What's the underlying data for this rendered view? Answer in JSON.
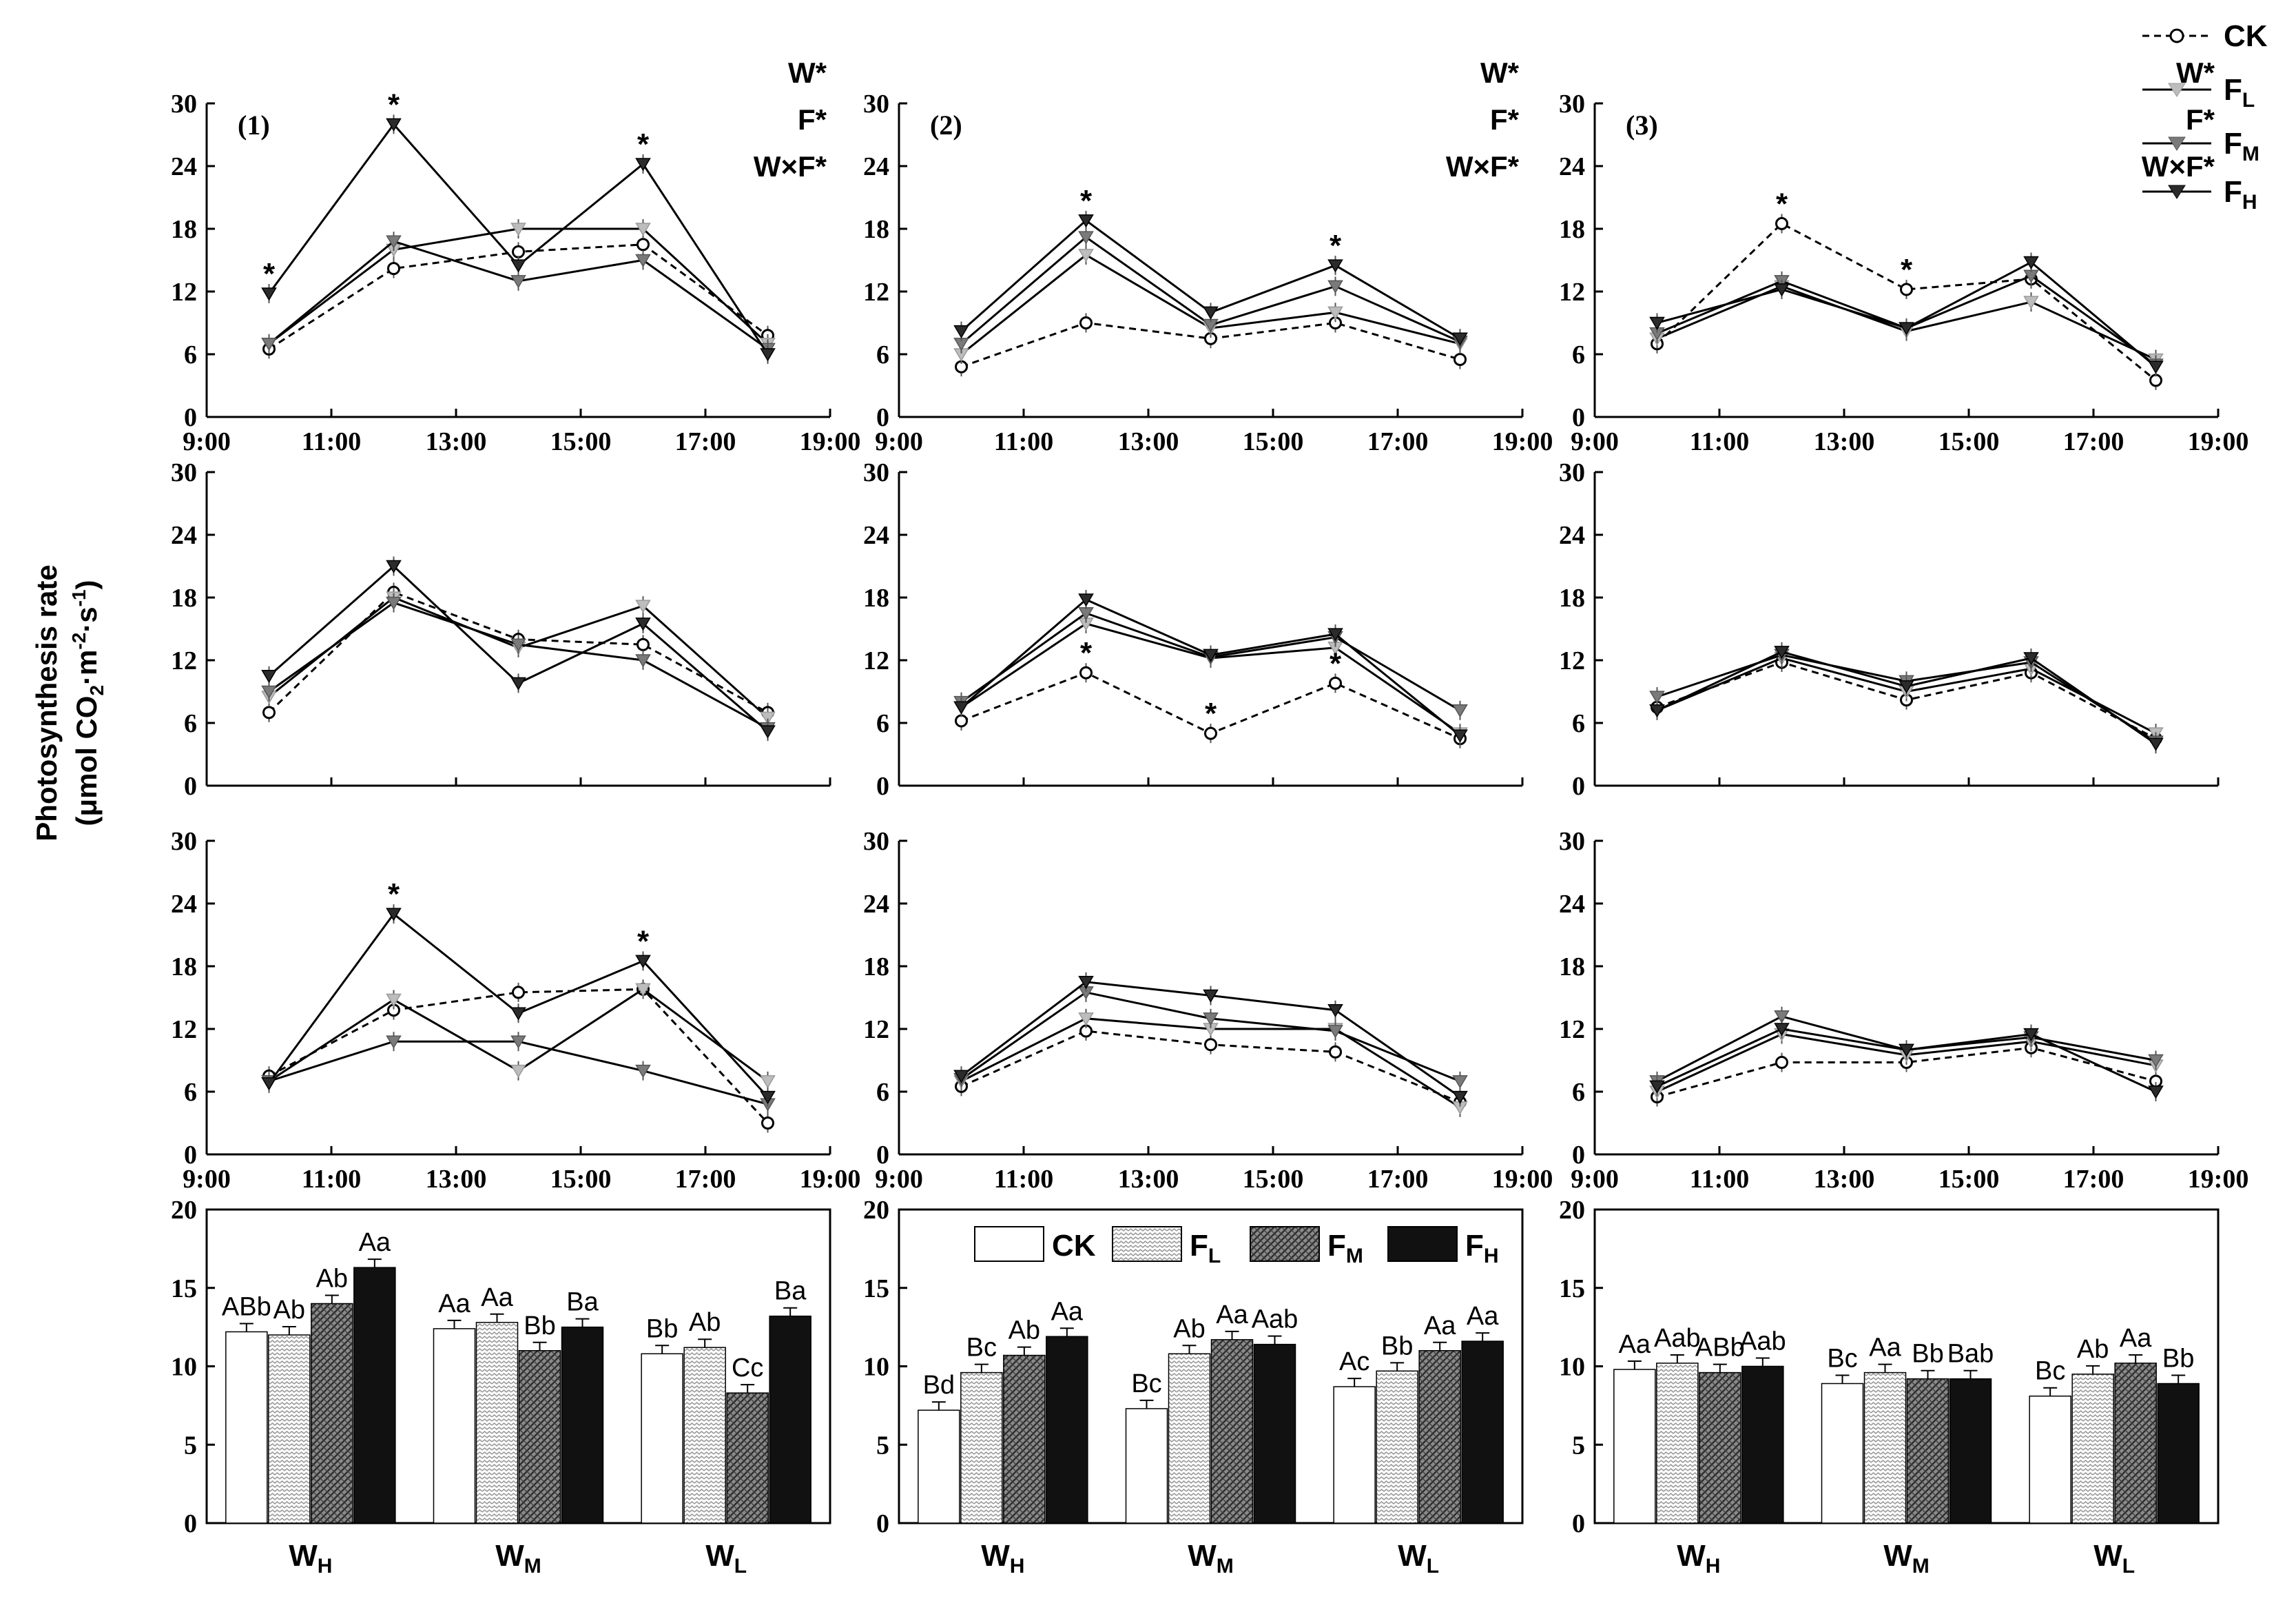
{
  "figure": {
    "ylabel_line1": "Photosynthesis rate",
    "ylabel_line2_prefix": "(μmol CO",
    "ylabel_line2_suffix": "·m",
    "ylabel_line2_end": "·s",
    "ylabel_close": ")",
    "ylabel_sub2": "2",
    "ylabel_sup_m": "-2",
    "ylabel_sup_s": "-1"
  },
  "legend": {
    "entries": [
      {
        "key": "CK",
        "label": "CK",
        "sub": ""
      },
      {
        "key": "FL",
        "label": "F",
        "sub": "L"
      },
      {
        "key": "FM",
        "label": "F",
        "sub": "M"
      },
      {
        "key": "FH",
        "label": "F",
        "sub": "H"
      }
    ],
    "colors": {
      "CK": "#ffffff",
      "FL": "#bdbdbd",
      "FM": "#7a7a7a",
      "FH": "#2b2b2b"
    }
  },
  "anova_labels": [
    "W*",
    "F*",
    "W×F*"
  ],
  "chart_data": [
    {
      "type": "line",
      "panel": "(1)",
      "row": 1,
      "col": 1,
      "title": "(1)",
      "anova": true,
      "x_ticks": [
        "9:00",
        "11:00",
        "13:00",
        "15:00",
        "17:00",
        "19:00"
      ],
      "y_ticks": [
        0,
        6,
        12,
        18,
        24,
        30
      ],
      "ylim": [
        0,
        30
      ],
      "xlim": [
        9,
        19
      ],
      "x": [
        10,
        12,
        14,
        16,
        18
      ],
      "series": [
        {
          "name": "CK",
          "values": [
            6.5,
            14.2,
            15.8,
            16.5,
            7.8
          ]
        },
        {
          "name": "FL",
          "values": [
            7.0,
            16.0,
            18.0,
            18.0,
            7.0
          ]
        },
        {
          "name": "FM",
          "values": [
            7.0,
            16.8,
            13.0,
            15.0,
            6.5
          ]
        },
        {
          "name": "FH",
          "values": [
            11.8,
            28.0,
            14.5,
            24.2,
            6.0
          ]
        }
      ],
      "annotations": [
        {
          "x": 10,
          "y": 11.8,
          "text": "*"
        },
        {
          "x": 12,
          "y": 28.0,
          "text": "*"
        },
        {
          "x": 16,
          "y": 24.2,
          "text": "*"
        }
      ]
    },
    {
      "type": "line",
      "panel": "(2)",
      "row": 1,
      "col": 2,
      "title": "(2)",
      "anova": true,
      "x_ticks": [
        "9:00",
        "11:00",
        "13:00",
        "15:00",
        "17:00",
        "19:00"
      ],
      "y_ticks": [
        0,
        6,
        12,
        18,
        24,
        30
      ],
      "ylim": [
        0,
        30
      ],
      "xlim": [
        9,
        19
      ],
      "x": [
        10,
        12,
        14,
        16,
        18
      ],
      "series": [
        {
          "name": "CK",
          "values": [
            4.8,
            9.0,
            7.5,
            9.0,
            5.5
          ]
        },
        {
          "name": "FL",
          "values": [
            6.0,
            15.5,
            8.5,
            10.0,
            7.0
          ]
        },
        {
          "name": "FM",
          "values": [
            7.0,
            17.2,
            8.8,
            12.5,
            7.2
          ]
        },
        {
          "name": "FH",
          "values": [
            8.2,
            18.8,
            10.0,
            14.5,
            7.5
          ]
        }
      ],
      "annotations": [
        {
          "x": 12,
          "y": 18.8,
          "text": "*"
        },
        {
          "x": 16,
          "y": 14.5,
          "text": "*"
        }
      ]
    },
    {
      "type": "line",
      "panel": "(3)",
      "row": 1,
      "col": 3,
      "title": "(3)",
      "anova": true,
      "x_ticks": [
        "9:00",
        "11:00",
        "13:00",
        "15:00",
        "17:00",
        "19:00"
      ],
      "y_ticks": [
        0,
        6,
        12,
        18,
        24,
        30
      ],
      "ylim": [
        0,
        30
      ],
      "xlim": [
        9,
        19
      ],
      "x": [
        10,
        12,
        14,
        16,
        18
      ],
      "series": [
        {
          "name": "CK",
          "values": [
            7.0,
            18.5,
            12.2,
            13.2,
            3.5
          ]
        },
        {
          "name": "FL",
          "values": [
            7.5,
            12.5,
            8.2,
            11.0,
            5.5
          ]
        },
        {
          "name": "FM",
          "values": [
            8.0,
            13.0,
            8.5,
            13.5,
            5.0
          ]
        },
        {
          "name": "FH",
          "values": [
            9.0,
            12.2,
            8.5,
            14.8,
            4.8
          ]
        }
      ],
      "annotations": [
        {
          "x": 12,
          "y": 18.5,
          "text": "*"
        },
        {
          "x": 14,
          "y": 12.2,
          "text": "*"
        }
      ]
    },
    {
      "type": "line",
      "row": 2,
      "col": 1,
      "title": "",
      "anova": false,
      "x_ticks": [],
      "y_ticks": [
        0,
        6,
        12,
        18,
        24,
        30
      ],
      "ylim": [
        0,
        30
      ],
      "xlim": [
        9,
        19
      ],
      "x": [
        10,
        12,
        14,
        16,
        18
      ],
      "series": [
        {
          "name": "CK",
          "values": [
            7.0,
            18.5,
            14.0,
            13.5,
            7.0
          ]
        },
        {
          "name": "FL",
          "values": [
            8.5,
            18.0,
            13.2,
            17.2,
            6.5
          ]
        },
        {
          "name": "FM",
          "values": [
            9.0,
            17.5,
            13.5,
            12.0,
            5.5
          ]
        },
        {
          "name": "FH",
          "values": [
            10.5,
            21.0,
            9.8,
            15.5,
            5.2
          ]
        }
      ],
      "annotations": []
    },
    {
      "type": "line",
      "row": 2,
      "col": 2,
      "title": "",
      "anova": false,
      "x_ticks": [],
      "y_ticks": [
        0,
        6,
        12,
        18,
        24,
        30
      ],
      "ylim": [
        0,
        30
      ],
      "xlim": [
        9,
        19
      ],
      "x": [
        10,
        12,
        14,
        16,
        18
      ],
      "series": [
        {
          "name": "CK",
          "values": [
            6.2,
            10.8,
            5.0,
            9.8,
            4.5
          ]
        },
        {
          "name": "FL",
          "values": [
            7.5,
            15.5,
            12.2,
            13.2,
            5.0
          ]
        },
        {
          "name": "FM",
          "values": [
            8.0,
            16.5,
            12.3,
            14.2,
            7.2
          ]
        },
        {
          "name": "FH",
          "values": [
            7.5,
            17.8,
            12.5,
            14.5,
            4.8
          ]
        }
      ],
      "annotations": [
        {
          "x": 12,
          "y": 10.8,
          "text": "*"
        },
        {
          "x": 14,
          "y": 5.0,
          "text": "*"
        },
        {
          "x": 16,
          "y": 9.8,
          "text": "*"
        }
      ]
    },
    {
      "type": "line",
      "row": 2,
      "col": 3,
      "title": "",
      "anova": false,
      "x_ticks": [],
      "y_ticks": [
        0,
        6,
        12,
        18,
        24,
        30
      ],
      "ylim": [
        0,
        30
      ],
      "xlim": [
        9,
        19
      ],
      "x": [
        10,
        12,
        14,
        16,
        18
      ],
      "series": [
        {
          "name": "CK",
          "values": [
            7.5,
            11.8,
            8.2,
            10.8,
            4.5
          ]
        },
        {
          "name": "FL",
          "values": [
            7.2,
            12.2,
            9.0,
            11.2,
            5.0
          ]
        },
        {
          "name": "FM",
          "values": [
            8.5,
            12.5,
            10.0,
            11.8,
            4.2
          ]
        },
        {
          "name": "FH",
          "values": [
            7.2,
            12.8,
            9.5,
            12.2,
            4.0
          ]
        }
      ],
      "annotations": []
    },
    {
      "type": "line",
      "row": 3,
      "col": 1,
      "title": "",
      "anova": false,
      "x_ticks": [
        "9:00",
        "11:00",
        "13:00",
        "15:00",
        "17:00",
        "19:00"
      ],
      "y_ticks": [
        0,
        6,
        12,
        18,
        24,
        30
      ],
      "ylim": [
        0,
        30
      ],
      "xlim": [
        9,
        19
      ],
      "x": [
        10,
        12,
        14,
        16,
        18
      ],
      "series": [
        {
          "name": "CK",
          "values": [
            7.5,
            13.8,
            15.5,
            15.8,
            3.0
          ]
        },
        {
          "name": "FL",
          "values": [
            7.0,
            14.8,
            8.0,
            15.8,
            7.0
          ]
        },
        {
          "name": "FM",
          "values": [
            7.0,
            10.8,
            10.8,
            8.0,
            4.8
          ]
        },
        {
          "name": "FH",
          "values": [
            6.8,
            23.0,
            13.5,
            18.5,
            5.5
          ]
        }
      ],
      "annotations": [
        {
          "x": 12,
          "y": 23.0,
          "text": "*"
        },
        {
          "x": 16,
          "y": 18.5,
          "text": "*"
        }
      ]
    },
    {
      "type": "line",
      "row": 3,
      "col": 2,
      "title": "",
      "anova": false,
      "x_ticks": [
        "9:00",
        "11:00",
        "13:00",
        "15:00",
        "17:00",
        "19:00"
      ],
      "y_ticks": [
        0,
        6,
        12,
        18,
        24,
        30
      ],
      "ylim": [
        0,
        30
      ],
      "xlim": [
        9,
        19
      ],
      "x": [
        10,
        12,
        14,
        16,
        18
      ],
      "series": [
        {
          "name": "CK",
          "values": [
            6.5,
            11.8,
            10.5,
            9.8,
            5.0
          ]
        },
        {
          "name": "FL",
          "values": [
            7.0,
            13.0,
            12.0,
            12.0,
            4.5
          ]
        },
        {
          "name": "FM",
          "values": [
            7.2,
            15.5,
            13.0,
            11.8,
            7.0
          ]
        },
        {
          "name": "FH",
          "values": [
            7.5,
            16.5,
            15.2,
            13.8,
            5.5
          ]
        }
      ],
      "annotations": []
    },
    {
      "type": "line",
      "row": 3,
      "col": 3,
      "title": "",
      "anova": false,
      "x_ticks": [
        "9:00",
        "11:00",
        "13:00",
        "15:00",
        "17:00",
        "19:00"
      ],
      "y_ticks": [
        0,
        6,
        12,
        18,
        24,
        30
      ],
      "ylim": [
        0,
        30
      ],
      "xlim": [
        9,
        19
      ],
      "x": [
        10,
        12,
        14,
        16,
        18
      ],
      "series": [
        {
          "name": "CK",
          "values": [
            5.5,
            8.8,
            8.8,
            10.2,
            7.0
          ]
        },
        {
          "name": "FL",
          "values": [
            6.0,
            11.5,
            9.5,
            10.8,
            8.5
          ]
        },
        {
          "name": "FM",
          "values": [
            7.0,
            13.2,
            10.0,
            11.2,
            9.0
          ]
        },
        {
          "name": "FH",
          "values": [
            6.5,
            12.0,
            10.0,
            11.5,
            6.0
          ]
        }
      ],
      "annotations": []
    },
    {
      "type": "bar",
      "row": 4,
      "col": 1,
      "ylim": [
        0,
        20
      ],
      "y_ticks": [
        0,
        5,
        10,
        15,
        20
      ],
      "categories": [
        {
          "base": "W",
          "sub": "H"
        },
        {
          "base": "W",
          "sub": "M"
        },
        {
          "base": "W",
          "sub": "L"
        }
      ],
      "series": [
        {
          "name": "CK",
          "values": [
            12.2,
            12.4,
            10.8
          ],
          "labels": [
            "ABb",
            "Aa",
            "Bb"
          ]
        },
        {
          "name": "FL",
          "values": [
            12.0,
            12.8,
            11.2
          ],
          "labels": [
            "Ab",
            "Aa",
            "Ab"
          ]
        },
        {
          "name": "FM",
          "values": [
            14.0,
            11.0,
            8.3
          ],
          "labels": [
            "Ab",
            "Bb",
            "Cc"
          ]
        },
        {
          "name": "FH",
          "values": [
            16.3,
            12.5,
            13.2
          ],
          "labels": [
            "Aa",
            "Ba",
            "Ba"
          ]
        }
      ],
      "show_legend": false
    },
    {
      "type": "bar",
      "row": 4,
      "col": 2,
      "ylim": [
        0,
        20
      ],
      "y_ticks": [
        0,
        5,
        10,
        15,
        20
      ],
      "categories": [
        {
          "base": "W",
          "sub": "H"
        },
        {
          "base": "W",
          "sub": "M"
        },
        {
          "base": "W",
          "sub": "L"
        }
      ],
      "series": [
        {
          "name": "CK",
          "values": [
            7.2,
            7.3,
            8.7
          ],
          "labels": [
            "Bd",
            "Bc",
            "Ac"
          ]
        },
        {
          "name": "FL",
          "values": [
            9.6,
            10.8,
            9.7
          ],
          "labels": [
            "Bc",
            "Ab",
            "Bb"
          ]
        },
        {
          "name": "FM",
          "values": [
            10.7,
            11.7,
            11.0
          ],
          "labels": [
            "Ab",
            "Aa",
            "Aa"
          ]
        },
        {
          "name": "FH",
          "values": [
            11.9,
            11.4,
            11.6
          ],
          "labels": [
            "Aa",
            "Aab",
            "Aa"
          ]
        }
      ],
      "show_legend": true
    },
    {
      "type": "bar",
      "row": 4,
      "col": 3,
      "ylim": [
        0,
        20
      ],
      "y_ticks": [
        0,
        5,
        10,
        15,
        20
      ],
      "categories": [
        {
          "base": "W",
          "sub": "H"
        },
        {
          "base": "W",
          "sub": "M"
        },
        {
          "base": "W",
          "sub": "L"
        }
      ],
      "series": [
        {
          "name": "CK",
          "values": [
            9.8,
            8.9,
            8.1
          ],
          "labels": [
            "Aa",
            "Bc",
            "Bc"
          ]
        },
        {
          "name": "FL",
          "values": [
            10.2,
            9.6,
            9.5
          ],
          "labels": [
            "Aab",
            "Aa",
            "Ab"
          ]
        },
        {
          "name": "FM",
          "values": [
            9.6,
            9.2,
            10.2
          ],
          "labels": [
            "ABb",
            "Bb",
            "Aa"
          ]
        },
        {
          "name": "FH",
          "values": [
            10.0,
            9.2,
            8.9
          ],
          "labels": [
            "Aab",
            "Bab",
            "Bb"
          ]
        }
      ],
      "show_legend": false
    }
  ]
}
